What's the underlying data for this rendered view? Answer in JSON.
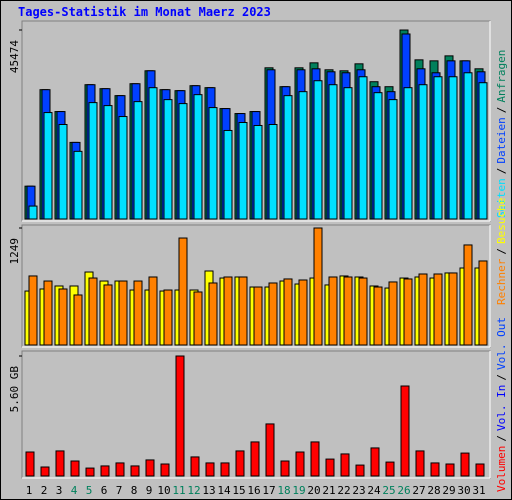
{
  "chart_data": [
    {
      "type": "bar",
      "title": "Tages-Statistik im Monat Maerz 2023",
      "ylim": [
        0,
        45474
      ],
      "yticks": [
        45474
      ],
      "legend_separator": "/",
      "series": [
        {
          "name": "Anfragen",
          "color": "#00805c",
          "values": [
            7898,
            31114,
            25849,
            18429,
            32311,
            31354,
            29678,
            32550,
            35662,
            31114,
            30875,
            32072,
            31593,
            26567,
            25370,
            25849,
            36380,
            31832,
            36380,
            37576,
            35901,
            35662,
            37337,
            33029,
            31832,
            45474,
            38294,
            38055,
            39252,
            38055,
            36140
          ]
        },
        {
          "name": "Dateien",
          "color": "#0040ff",
          "values": [
            7898,
            31114,
            25849,
            18429,
            32311,
            31354,
            29678,
            32550,
            35662,
            31114,
            30875,
            32072,
            31593,
            26567,
            25370,
            25849,
            35901,
            31832,
            35901,
            36140,
            35422,
            35183,
            35901,
            31832,
            30636,
            44517,
            36140,
            35183,
            38055,
            38055,
            35422
          ]
        },
        {
          "name": "Seiten",
          "color": "#00e0ff",
          "values": [
            3111,
            25609,
            22737,
            16275,
            28003,
            27285,
            24652,
            28242,
            31593,
            28721,
            27763,
            29918,
            26806,
            21301,
            23216,
            22498,
            22737,
            29678,
            30636,
            33268,
            32311,
            31593,
            34226,
            30396,
            28721,
            31593,
            32311,
            34226,
            34226,
            35183,
            32790
          ]
        }
      ]
    },
    {
      "type": "bar",
      "ylim": [
        0,
        1249
      ],
      "yticks": [
        1249
      ],
      "legend_separator": "/",
      "series": [
        {
          "name": "Besuche",
          "color": "#ffff00",
          "values": [
            576,
            598,
            630,
            630,
            779,
            683,
            683,
            587,
            587,
            576,
            587,
            587,
            790,
            715,
            726,
            619,
            619,
            683,
            651,
            715,
            641,
            737,
            726,
            630,
            608,
            715,
            726,
            715,
            769,
            822,
            822
          ]
        },
        {
          "name": "Rechner",
          "color": "#ff8000",
          "values": [
            737,
            683,
            598,
            534,
            715,
            641,
            683,
            683,
            726,
            587,
            1142,
            566,
            662,
            726,
            726,
            619,
            662,
            705,
            694,
            1249,
            726,
            726,
            715,
            619,
            673,
            705,
            758,
            758,
            769,
            1068,
            897
          ]
        }
      ]
    },
    {
      "type": "bar",
      "ylim": [
        0,
        5.6
      ],
      "yticks": [
        {
          "value": 5.6,
          "label": "5.60 GB"
        }
      ],
      "legend_separator": "/",
      "categories": [
        "1",
        "2",
        "3",
        "4",
        "5",
        "6",
        "7",
        "8",
        "9",
        "10",
        "11",
        "12",
        "13",
        "14",
        "15",
        "16",
        "17",
        "18",
        "19",
        "20",
        "21",
        "22",
        "23",
        "24",
        "25",
        "26",
        "27",
        "28",
        "29",
        "30",
        "31"
      ],
      "category_colors": [
        "#000000",
        "#000000",
        "#000000",
        "#00805c",
        "#00805c",
        "#000000",
        "#000000",
        "#000000",
        "#000000",
        "#000000",
        "#00805c",
        "#00805c",
        "#000000",
        "#000000",
        "#000000",
        "#000000",
        "#000000",
        "#00805c",
        "#00805c",
        "#000000",
        "#000000",
        "#000000",
        "#000000",
        "#000000",
        "#00805c",
        "#00805c",
        "#000000",
        "#000000",
        "#000000",
        "#000000",
        "#000000"
      ],
      "legend_extra": [
        {
          "name": "Vol. Out",
          "color": "#0040ff"
        },
        {
          "name": "Vol. In",
          "color": "#0000ff"
        }
      ],
      "series": [
        {
          "name": "Volumen",
          "color": "#ff0000",
          "values": [
            1.12,
            0.42,
            1.17,
            0.7,
            0.37,
            0.47,
            0.61,
            0.47,
            0.75,
            0.56,
            5.6,
            0.89,
            0.61,
            0.61,
            1.17,
            1.59,
            2.43,
            0.7,
            1.12,
            1.59,
            0.79,
            1.03,
            0.51,
            1.31,
            0.65,
            4.2,
            1.17,
            0.61,
            0.56,
            1.07,
            0.56
          ]
        }
      ]
    }
  ]
}
